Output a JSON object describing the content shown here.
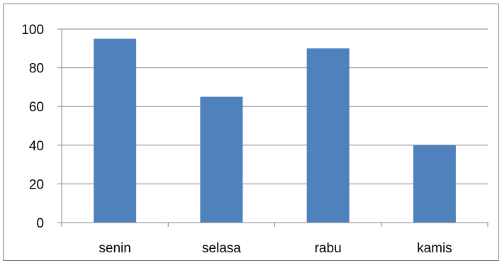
{
  "chart_data": {
    "type": "bar",
    "categories": [
      "senin",
      "selasa",
      "rabu",
      "kamis"
    ],
    "values": [
      95,
      65,
      90,
      40
    ],
    "title": "",
    "xlabel": "",
    "ylabel": "",
    "ylim": [
      0,
      100
    ],
    "yticks": [
      0,
      20,
      40,
      60,
      80,
      100
    ],
    "grid": true,
    "legend": "none",
    "bar_color": "#4f81bd",
    "grid_color": "#868686"
  }
}
